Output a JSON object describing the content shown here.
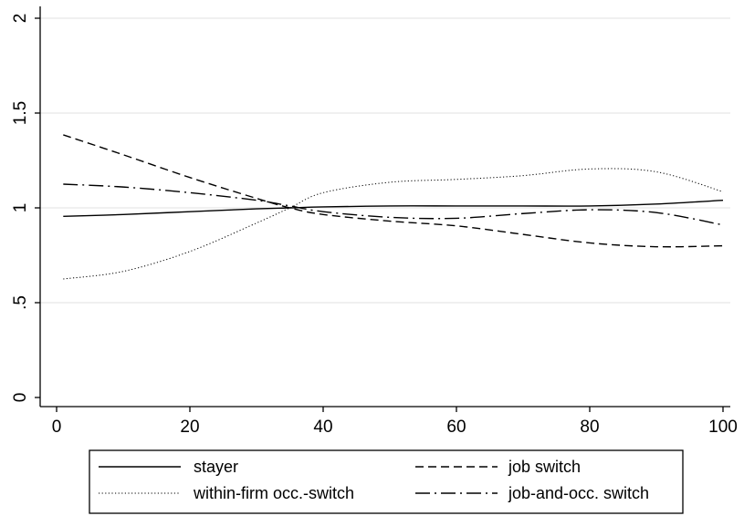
{
  "chart_data": {
    "type": "line",
    "title": "",
    "xlabel": "",
    "ylabel": "",
    "xlim": [
      0,
      100
    ],
    "ylim": [
      0,
      2
    ],
    "x_ticks": [
      0,
      20,
      40,
      60,
      80,
      100
    ],
    "x_tick_labels": [
      "0",
      "20",
      "40",
      "60",
      "80",
      "100"
    ],
    "y_ticks": [
      0,
      0.5,
      1,
      1.5,
      2
    ],
    "y_tick_labels": [
      "0",
      ".5",
      "1",
      "1.5",
      "2"
    ],
    "grid": "horizontal",
    "legend_position": "bottom",
    "x": [
      1,
      10,
      20,
      30,
      35,
      40,
      50,
      60,
      70,
      80,
      90,
      100
    ],
    "series": [
      {
        "name": "stayer",
        "style": "solid",
        "values": [
          0.955,
          0.965,
          0.98,
          0.995,
          1.0,
          1.005,
          1.01,
          1.01,
          1.01,
          1.01,
          1.02,
          1.04
        ]
      },
      {
        "name": "job switch",
        "style": "dashed",
        "values": [
          1.385,
          1.28,
          1.16,
          1.05,
          1.0,
          0.965,
          0.93,
          0.905,
          0.86,
          0.815,
          0.795,
          0.8
        ]
      },
      {
        "name": "within-firm occ.-switch",
        "style": "dotted",
        "values": [
          0.625,
          0.665,
          0.77,
          0.92,
          1.0,
          1.08,
          1.135,
          1.15,
          1.17,
          1.205,
          1.19,
          1.085
        ]
      },
      {
        "name": "job-and-occ. switch",
        "style": "dashdot",
        "values": [
          1.125,
          1.11,
          1.08,
          1.04,
          1.01,
          0.98,
          0.95,
          0.945,
          0.97,
          0.99,
          0.975,
          0.91
        ]
      }
    ],
    "colors": {
      "line": "#000000",
      "grid": "#e8e8e8",
      "background": "#ffffff"
    }
  }
}
